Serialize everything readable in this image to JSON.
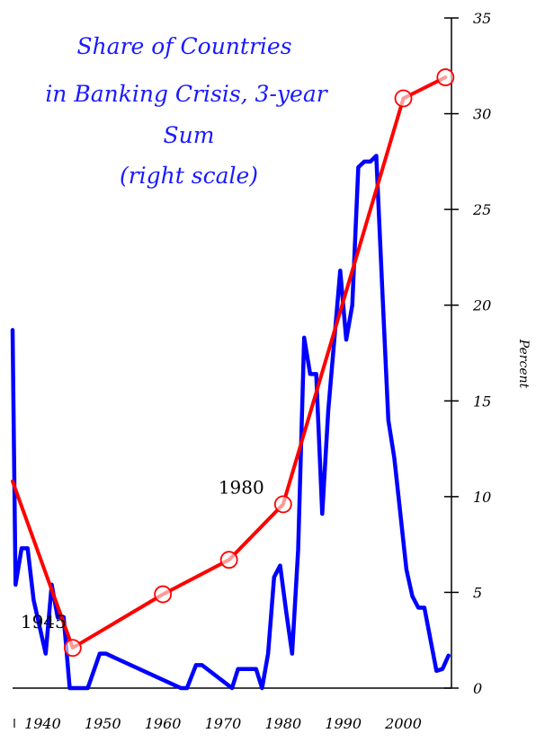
{
  "chart_data": {
    "type": "line",
    "title_lines": [
      "Share of Countries",
      "in Banking Crisis, 3-year",
      "Sum",
      "(right scale)"
    ],
    "ylabel": "Percent",
    "y_axis_side": "right",
    "ylim": [
      0,
      35
    ],
    "xlim": [
      1935,
      2008
    ],
    "x_ticks": [
      1940,
      1950,
      1960,
      1970,
      1980,
      1990,
      2000
    ],
    "y_ticks": [
      0,
      5,
      10,
      15,
      20,
      25,
      30,
      35
    ],
    "grid": false,
    "annotations": [
      {
        "text": "1945",
        "x": 1945,
        "y": 2.1
      },
      {
        "text": "1980",
        "x": 1980,
        "y": 9.6
      }
    ],
    "series": [
      {
        "color": "#ff0000",
        "markers": "open-circle",
        "x": [
          1935,
          1945,
          1960,
          1971,
          1980,
          2000,
          2007
        ],
        "y": [
          10.8,
          2.1,
          4.9,
          6.7,
          9.6,
          30.8,
          31.9
        ]
      },
      {
        "color": "#0000ff",
        "markers": "none",
        "x": [
          1935,
          1935.5,
          1936.5,
          1937.5,
          1938.5,
          1940.5,
          1941.5,
          1942.5,
          1943.5,
          1944.5,
          1947.5,
          1949.5,
          1950.5,
          1963,
          1964,
          1965.5,
          1966.5,
          1971.5,
          1972.5,
          1975.5,
          1976.5,
          1977.5,
          1978.5,
          1979.5,
          1980.5,
          1981.5,
          1982.5,
          1983.5,
          1984.5,
          1985.5,
          1986.5,
          1987.5,
          1989.5,
          1990.5,
          1991.5,
          1992.5,
          1993.5,
          1994.5,
          1995.5,
          1996.5,
          1997.5,
          1998.5,
          2000.5,
          2001.5,
          2002.5,
          2003.5,
          2005.5,
          2006.5,
          2007.5
        ],
        "y": [
          18.7,
          5.4,
          7.3,
          7.3,
          4.6,
          1.8,
          5.4,
          3.7,
          3.7,
          0,
          0,
          1.8,
          1.8,
          0,
          0,
          1.2,
          1.2,
          0,
          1.0,
          1.0,
          0,
          1.8,
          5.8,
          6.4,
          4.0,
          1.8,
          7.2,
          18.3,
          16.4,
          16.4,
          9.1,
          14.5,
          21.8,
          18.2,
          20.0,
          27.2,
          27.5,
          27.5,
          27.8,
          20.8,
          14.0,
          12.0,
          6.2,
          4.8,
          4.2,
          4.2,
          0.9,
          1.0,
          1.7
        ]
      }
    ]
  }
}
